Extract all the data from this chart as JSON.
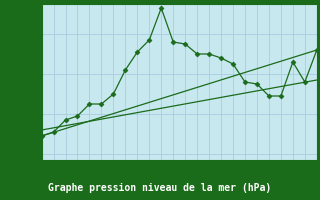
{
  "title": "Graphe pression niveau de la mer (hPa)",
  "x_values": [
    0,
    1,
    2,
    3,
    4,
    5,
    6,
    7,
    8,
    9,
    10,
    11,
    12,
    13,
    14,
    15,
    16,
    17,
    18,
    19,
    20,
    21,
    22,
    23
  ],
  "main_line": [
    1031.45,
    1031.55,
    1031.85,
    1031.95,
    1032.25,
    1032.25,
    1032.5,
    1033.1,
    1033.55,
    1033.85,
    1034.65,
    1033.8,
    1033.75,
    1033.5,
    1033.5,
    1033.4,
    1033.25,
    1032.8,
    1032.75,
    1032.45,
    1032.45,
    1033.3,
    1032.8,
    1033.6
  ],
  "trend_line1": [
    [
      0,
      23
    ],
    [
      1031.45,
      1033.6
    ]
  ],
  "trend_line2": [
    [
      0,
      23
    ],
    [
      1031.6,
      1032.85
    ]
  ],
  "ylim": [
    1030.85,
    1034.75
  ],
  "xlim": [
    0,
    23
  ],
  "yticks": [
    1031,
    1032,
    1033,
    1034
  ],
  "xticks": [
    0,
    1,
    2,
    3,
    4,
    5,
    6,
    7,
    8,
    9,
    10,
    11,
    12,
    13,
    14,
    15,
    16,
    17,
    18,
    19,
    20,
    21,
    22,
    23
  ],
  "line_color": "#1a6b1a",
  "plot_bg_color": "#c8e8f0",
  "fig_bg_color": "#1a6b1a",
  "grid_color": "#a8cce0",
  "text_color": "#1a6b1a",
  "label_text_color": "#ffffff",
  "marker": "D",
  "marker_size": 2.5,
  "title_fontsize": 7,
  "tick_fontsize": 5.5
}
